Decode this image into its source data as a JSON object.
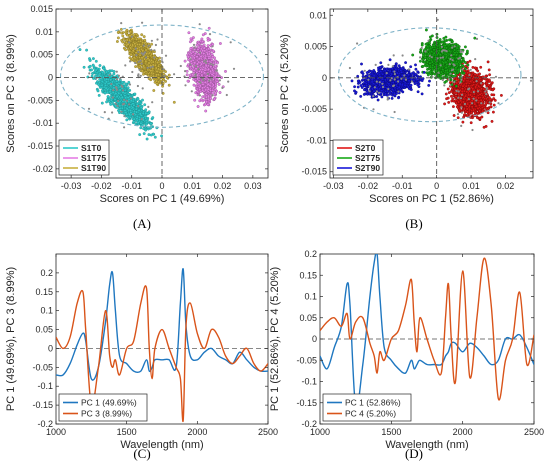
{
  "chart_data": [
    {
      "type": "scatter",
      "panel_label": "(A)",
      "xlabel": "Scores on PC 1 (49.69%)",
      "ylabel": "Scores on PC 3 (8.99%)",
      "xlim": [
        -0.035,
        0.035
      ],
      "ylim": [
        -0.022,
        0.015
      ],
      "xticks": [
        -0.03,
        -0.02,
        -0.01,
        0,
        0.01,
        0.02,
        0.03
      ],
      "xtick_labels": [
        "-0.03",
        "-0.02",
        "-0.01",
        "0",
        "0.01",
        "0.02",
        "0.03"
      ],
      "yticks": [
        -0.02,
        -0.015,
        -0.01,
        -0.005,
        0,
        0.005,
        0.01,
        0.015
      ],
      "ytick_labels": [
        "-0.02",
        "-0.015",
        "-0.01",
        "-0.005",
        "0",
        "0.005",
        "0.01",
        "0.015"
      ],
      "legend_position": "bottom-left",
      "confidence_ellipse": {
        "center": [
          0,
          0.0003
        ],
        "radii": [
          0.0335,
          0.0112
        ],
        "color": "#7fb3c8"
      },
      "series": [
        {
          "name": "S1T0",
          "color": "#2ec9c9",
          "edge": "#1a8a8a",
          "cluster": {
            "center": [
              -0.013,
              -0.0045
            ],
            "spread_major": 0.0135,
            "spread_minor": 0.0024,
            "angle_deg": -48
          }
        },
        {
          "name": "S1T75",
          "color": "#e47fe4",
          "edge": "#8a4a8a",
          "cluster": {
            "center": [
              0.014,
              0.0015
            ],
            "spread_major": 0.0095,
            "spread_minor": 0.003,
            "angle_deg": -80
          }
        },
        {
          "name": "S1T90",
          "color": "#c8b040",
          "edge": "#7a6a20",
          "cluster": {
            "center": [
              -0.006,
              0.0045
            ],
            "spread_major": 0.01,
            "spread_minor": 0.0022,
            "angle_deg": -52
          }
        }
      ]
    },
    {
      "type": "scatter",
      "panel_label": "(B)",
      "xlabel": "Scores on PC 1 (52.86%)",
      "ylabel": "Scores on PC 4 (5.20%)",
      "xlim": [
        -0.031,
        0.028
      ],
      "ylim": [
        -0.016,
        0.011
      ],
      "xticks": [
        -0.03,
        -0.02,
        -0.01,
        0,
        0.01,
        0.02
      ],
      "xtick_labels": [
        "-0.03",
        "-0.02",
        "-0.01",
        "0",
        "0.01",
        "0.02"
      ],
      "yticks": [
        -0.015,
        -0.01,
        -0.005,
        0,
        0.005,
        0.01
      ],
      "ytick_labels": [
        "-0.015",
        "-0.01",
        "-0.005",
        "0",
        "0.005",
        "0.01"
      ],
      "legend_position": "bottom-left",
      "confidence_ellipse": {
        "center": [
          -0.002,
          0.0005
        ],
        "radii": [
          0.0265,
          0.0075
        ],
        "color": "#7fb3c8"
      },
      "series": [
        {
          "name": "S2T0",
          "color": "#e01818",
          "edge": "#700808",
          "cluster": {
            "center": [
              0.01,
              -0.0025
            ],
            "spread_major": 0.007,
            "spread_minor": 0.0032,
            "angle_deg": -70
          }
        },
        {
          "name": "S2T75",
          "color": "#18a818",
          "edge": "#085808",
          "cluster": {
            "center": [
              0.002,
              0.003
            ],
            "spread_major": 0.006,
            "spread_minor": 0.003,
            "angle_deg": -30
          }
        },
        {
          "name": "S2T90",
          "color": "#1818d8",
          "edge": "#080870",
          "cluster": {
            "center": [
              -0.014,
              -0.0005
            ],
            "spread_major": 0.0085,
            "spread_minor": 0.0022,
            "angle_deg": 8
          }
        }
      ]
    },
    {
      "type": "line",
      "panel_label": "(C)",
      "xlabel": "Wavelength (nm)",
      "ylabel": "PC 1 (49.69%), PC 3 (8.99%)",
      "xlim": [
        1000,
        2500
      ],
      "ylim": [
        -0.2,
        0.25
      ],
      "xticks": [
        1000,
        1500,
        2000,
        2500
      ],
      "xtick_labels": [
        "1000",
        "1500",
        "2000",
        "2500"
      ],
      "yticks": [
        -0.2,
        -0.15,
        -0.1,
        -0.05,
        0,
        0.05,
        0.1,
        0.15,
        0.2
      ],
      "ytick_labels": [
        "-0.2",
        "-0.15",
        "-0.1",
        "-0.05",
        "0",
        "0.05",
        "0.1",
        "0.15",
        "0.2"
      ],
      "zero_line": true,
      "legend_position": "bottom-left",
      "x": [
        1000,
        1050,
        1100,
        1150,
        1190,
        1210,
        1250,
        1300,
        1350,
        1380,
        1400,
        1420,
        1450,
        1500,
        1550,
        1600,
        1640,
        1660,
        1680,
        1700,
        1750,
        1800,
        1850,
        1880,
        1900,
        1920,
        1950,
        2000,
        2050,
        2100,
        2150,
        2200,
        2250,
        2300,
        2350,
        2400,
        2450,
        2500
      ],
      "series": [
        {
          "name": "PC 1 (49.69%)",
          "color": "#1f77c0",
          "values": [
            -0.07,
            -0.07,
            -0.04,
            0.01,
            0.04,
            0.02,
            -0.08,
            -0.05,
            0.07,
            0.17,
            0.2,
            0.1,
            -0.02,
            -0.04,
            -0.06,
            -0.06,
            -0.03,
            -0.06,
            -0.05,
            -0.03,
            -0.03,
            -0.03,
            -0.05,
            0.12,
            0.21,
            0.06,
            -0.02,
            -0.03,
            -0.01,
            0.0,
            -0.02,
            -0.03,
            -0.04,
            -0.01,
            -0.03,
            -0.05,
            -0.06,
            -0.06
          ]
        },
        {
          "name": "PC 3 (8.99%)",
          "color": "#d9541a",
          "values": [
            0.03,
            0.0,
            0.03,
            0.12,
            0.15,
            0.05,
            -0.15,
            -0.05,
            0.1,
            -0.02,
            -0.05,
            -0.03,
            -0.07,
            0.0,
            0.02,
            0.12,
            0.16,
            0.0,
            -0.08,
            0.0,
            0.05,
            0.0,
            -0.05,
            -0.08,
            -0.19,
            0.06,
            0.12,
            0.04,
            0.0,
            0.05,
            0.03,
            -0.02,
            -0.04,
            -0.02,
            0.0,
            -0.04,
            -0.06,
            -0.04
          ]
        }
      ]
    },
    {
      "type": "line",
      "panel_label": "(D)",
      "xlabel": "Wavelength (nm)",
      "ylabel": "PC 1 (52.86%), PC 4 (5.20%)",
      "xlim": [
        1000,
        2500
      ],
      "ylim": [
        -0.2,
        0.2
      ],
      "xticks": [
        1000,
        1500,
        2000,
        2500
      ],
      "xtick_labels": [
        "1000",
        "1500",
        "2000",
        "2500"
      ],
      "yticks": [
        -0.2,
        -0.15,
        -0.1,
        -0.05,
        0,
        0.05,
        0.1,
        0.15,
        0.2
      ],
      "ytick_labels": [
        "-0.2",
        "-0.15",
        "-0.1",
        "-0.05",
        "0",
        "0.05",
        "0.1",
        "0.15",
        "0.2"
      ],
      "zero_line": true,
      "legend_position": "bottom-left",
      "x": [
        1000,
        1050,
        1100,
        1150,
        1190,
        1210,
        1250,
        1300,
        1350,
        1380,
        1400,
        1420,
        1450,
        1500,
        1550,
        1600,
        1640,
        1660,
        1680,
        1700,
        1750,
        1800,
        1850,
        1880,
        1900,
        1920,
        1950,
        2000,
        2050,
        2100,
        2150,
        2200,
        2250,
        2300,
        2350,
        2400,
        2450,
        2500
      ],
      "series": [
        {
          "name": "PC 1 (52.86%)",
          "color": "#1f77c0",
          "values": [
            -0.04,
            -0.07,
            -0.02,
            0.03,
            0.13,
            0.08,
            -0.16,
            -0.06,
            0.1,
            0.18,
            0.2,
            0.1,
            -0.02,
            -0.05,
            -0.07,
            -0.08,
            -0.05,
            -0.07,
            -0.06,
            -0.05,
            -0.06,
            -0.06,
            -0.06,
            -0.04,
            -0.03,
            -0.01,
            -0.01,
            -0.03,
            -0.01,
            -0.02,
            -0.04,
            -0.06,
            -0.05,
            0.0,
            0.0,
            0.01,
            -0.02,
            -0.06
          ]
        },
        {
          "name": "PC 4 (5.20%)",
          "color": "#d9541a",
          "values": [
            0.02,
            0.04,
            0.05,
            0.03,
            0.06,
            0.0,
            0.04,
            0.05,
            -0.01,
            -0.04,
            -0.08,
            -0.03,
            -0.05,
            0.0,
            0.02,
            0.08,
            0.14,
            0.04,
            -0.03,
            0.05,
            0.0,
            -0.05,
            -0.08,
            0.05,
            0.13,
            0.0,
            -0.1,
            0.16,
            -0.09,
            0.05,
            0.19,
            0.08,
            -0.14,
            -0.05,
            0.0,
            0.11,
            -0.06,
            0.01
          ]
        }
      ]
    }
  ]
}
